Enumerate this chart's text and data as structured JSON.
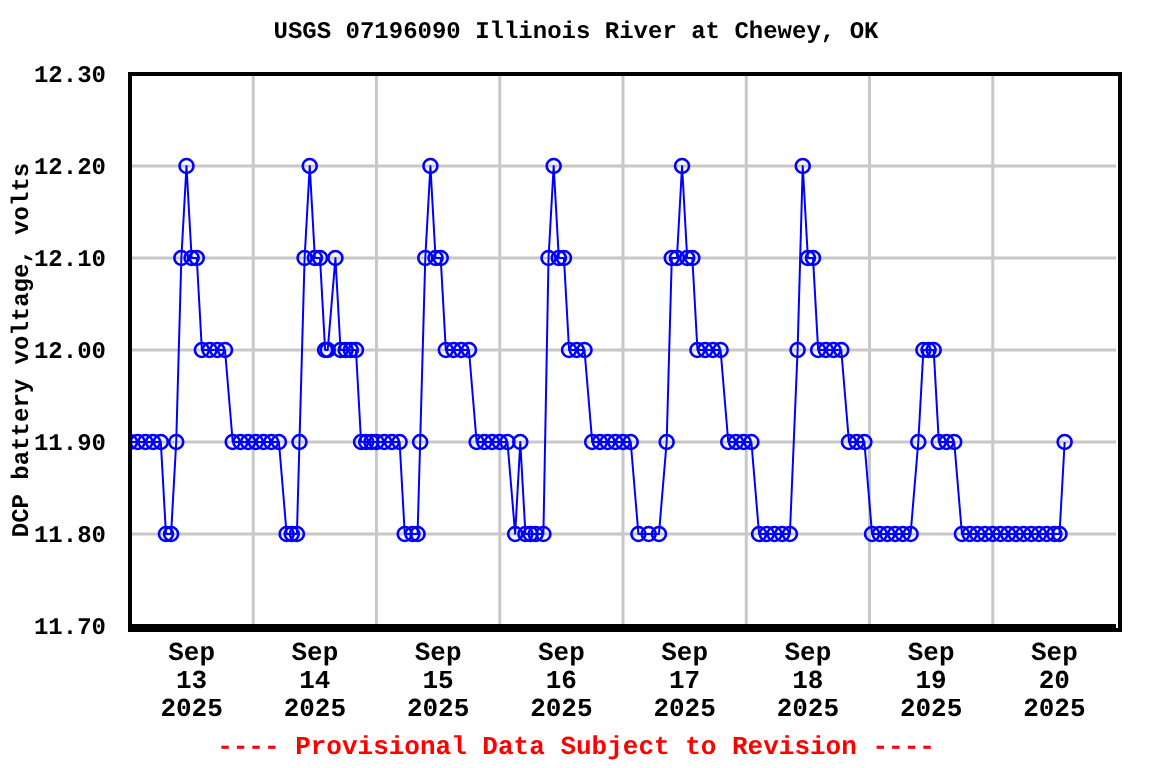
{
  "chart_data": {
    "type": "line",
    "title": "USGS 07196090 Illinois River at Chewey, OK",
    "ylabel": "DCP battery voltage, volts",
    "annotations": [
      "---- Provisional Data Subject to Revision ----"
    ],
    "xlim": [
      "2025-09-13T00:00",
      "2025-09-21T00:00"
    ],
    "xticks": [
      {
        "value": "2025-09-13T12:00",
        "label": "Sep 13 2025"
      },
      {
        "value": "2025-09-14T00:00",
        "label": null
      },
      {
        "value": "2025-09-14T12:00",
        "label": "Sep 14 2025"
      },
      {
        "value": "2025-09-15T00:00",
        "label": null
      },
      {
        "value": "2025-09-15T12:00",
        "label": "Sep 15 2025"
      },
      {
        "value": "2025-09-16T00:00",
        "label": null
      },
      {
        "value": "2025-09-16T12:00",
        "label": "Sep 16 2025"
      },
      {
        "value": "2025-09-17T00:00",
        "label": null
      },
      {
        "value": "2025-09-17T12:00",
        "label": "Sep 17 2025"
      },
      {
        "value": "2025-09-18T00:00",
        "label": null
      },
      {
        "value": "2025-09-18T12:00",
        "label": "Sep 18 2025"
      },
      {
        "value": "2025-09-19T00:00",
        "label": null
      },
      {
        "value": "2025-09-19T12:00",
        "label": "Sep 19 2025"
      },
      {
        "value": "2025-09-20T00:00",
        "label": null
      },
      {
        "value": "2025-09-20T12:00",
        "label": "Sep 20 2025"
      }
    ],
    "ylim": [
      11.7,
      12.3
    ],
    "yticks": [
      {
        "value": 11.7,
        "label": "11.70"
      },
      {
        "value": 11.8,
        "label": "11.80"
      },
      {
        "value": 11.9,
        "label": "11.90"
      },
      {
        "value": 12.0,
        "label": "12.00"
      },
      {
        "value": 12.1,
        "label": "12.10"
      },
      {
        "value": 12.2,
        "label": "12.20"
      },
      {
        "value": 12.3,
        "label": "12.30"
      }
    ],
    "grid": true,
    "marker": "circle",
    "line_style": "solid",
    "series": [
      {
        "color": "#0000ff",
        "x": [
          "2025-09-13T00:00",
          "2025-09-13T01:30",
          "2025-09-13T03:00",
          "2025-09-13T04:30",
          "2025-09-13T06:00",
          "2025-09-13T07:00",
          "2025-09-13T08:00",
          "2025-09-13T09:00",
          "2025-09-13T10:00",
          "2025-09-13T11:00",
          "2025-09-13T12:00",
          "2025-09-13T13:00",
          "2025-09-13T14:00",
          "2025-09-13T15:30",
          "2025-09-13T17:00",
          "2025-09-13T18:30",
          "2025-09-13T20:00",
          "2025-09-13T21:30",
          "2025-09-13T23:00",
          "2025-09-14T00:30",
          "2025-09-14T02:00",
          "2025-09-14T03:30",
          "2025-09-14T05:00",
          "2025-09-14T06:30",
          "2025-09-14T07:30",
          "2025-09-14T08:30",
          "2025-09-14T09:00",
          "2025-09-14T10:00",
          "2025-09-14T11:00",
          "2025-09-14T12:00",
          "2025-09-14T13:00",
          "2025-09-14T14:00",
          "2025-09-14T14:30",
          "2025-09-14T16:00",
          "2025-09-14T17:00",
          "2025-09-14T18:00",
          "2025-09-14T19:00",
          "2025-09-14T20:00",
          "2025-09-14T21:00",
          "2025-09-14T22:00",
          "2025-09-14T23:00",
          "2025-09-15T00:00",
          "2025-09-15T01:30",
          "2025-09-15T03:00",
          "2025-09-15T04:30",
          "2025-09-15T05:30",
          "2025-09-15T07:00",
          "2025-09-15T08:00",
          "2025-09-15T08:30",
          "2025-09-15T09:30",
          "2025-09-15T10:30",
          "2025-09-15T11:30",
          "2025-09-15T12:30",
          "2025-09-15T13:30",
          "2025-09-15T15:00",
          "2025-09-15T16:30",
          "2025-09-15T18:00",
          "2025-09-15T19:30",
          "2025-09-15T21:00",
          "2025-09-15T22:30",
          "2025-09-16T00:00",
          "2025-09-16T01:30",
          "2025-09-16T03:00",
          "2025-09-16T04:00",
          "2025-09-16T05:00",
          "2025-09-16T06:00",
          "2025-09-16T07:00",
          "2025-09-16T08:30",
          "2025-09-16T09:30",
          "2025-09-16T10:30",
          "2025-09-16T11:30",
          "2025-09-16T12:30",
          "2025-09-16T13:30",
          "2025-09-16T15:00",
          "2025-09-16T16:30",
          "2025-09-16T18:00",
          "2025-09-16T19:30",
          "2025-09-16T21:00",
          "2025-09-16T22:30",
          "2025-09-17T00:00",
          "2025-09-17T01:30",
          "2025-09-17T03:00",
          "2025-09-17T05:00",
          "2025-09-17T07:00",
          "2025-09-17T08:30",
          "2025-09-17T09:30",
          "2025-09-17T10:30",
          "2025-09-17T11:30",
          "2025-09-17T12:30",
          "2025-09-17T13:30",
          "2025-09-17T14:30",
          "2025-09-17T16:00",
          "2025-09-17T17:30",
          "2025-09-17T19:00",
          "2025-09-17T20:30",
          "2025-09-17T22:00",
          "2025-09-17T23:30",
          "2025-09-18T01:00",
          "2025-09-18T02:30",
          "2025-09-18T04:00",
          "2025-09-18T05:30",
          "2025-09-18T07:00",
          "2025-09-18T08:30",
          "2025-09-18T10:00",
          "2025-09-18T11:00",
          "2025-09-18T12:00",
          "2025-09-18T13:00",
          "2025-09-18T14:00",
          "2025-09-18T15:30",
          "2025-09-18T17:00",
          "2025-09-18T18:30",
          "2025-09-18T20:00",
          "2025-09-18T21:30",
          "2025-09-18T23:00",
          "2025-09-19T00:30",
          "2025-09-19T02:00",
          "2025-09-19T03:30",
          "2025-09-19T05:00",
          "2025-09-19T06:30",
          "2025-09-19T08:00",
          "2025-09-19T09:30",
          "2025-09-19T10:30",
          "2025-09-19T11:30",
          "2025-09-19T12:30",
          "2025-09-19T13:30",
          "2025-09-19T15:00",
          "2025-09-19T16:30",
          "2025-09-19T18:00",
          "2025-09-19T19:30",
          "2025-09-19T21:00",
          "2025-09-19T22:30",
          "2025-09-20T00:00",
          "2025-09-20T01:30",
          "2025-09-20T03:00",
          "2025-09-20T04:30",
          "2025-09-20T06:00",
          "2025-09-20T07:30",
          "2025-09-20T09:00",
          "2025-09-20T10:30",
          "2025-09-20T12:00",
          "2025-09-20T13:00",
          "2025-09-20T14:00"
        ],
        "values": [
          11.9,
          11.9,
          11.9,
          11.9,
          11.9,
          11.8,
          11.8,
          11.9,
          12.1,
          12.2,
          12.1,
          12.1,
          12.0,
          12.0,
          12.0,
          12.0,
          11.9,
          11.9,
          11.9,
          11.9,
          11.9,
          11.9,
          11.9,
          11.8,
          11.8,
          11.8,
          11.9,
          12.1,
          12.2,
          12.1,
          12.1,
          12.0,
          12.0,
          12.1,
          12.0,
          12.0,
          12.0,
          12.0,
          11.9,
          11.9,
          11.9,
          11.9,
          11.9,
          11.9,
          11.9,
          11.8,
          11.8,
          11.8,
          11.9,
          12.1,
          12.2,
          12.1,
          12.1,
          12.0,
          12.0,
          12.0,
          12.0,
          11.9,
          11.9,
          11.9,
          11.9,
          11.9,
          11.8,
          11.9,
          11.8,
          11.8,
          11.8,
          11.8,
          12.1,
          12.2,
          12.1,
          12.1,
          12.0,
          12.0,
          12.0,
          11.9,
          11.9,
          11.9,
          11.9,
          11.9,
          11.9,
          11.8,
          11.8,
          11.8,
          11.9,
          12.1,
          12.1,
          12.2,
          12.1,
          12.1,
          12.0,
          12.0,
          12.0,
          12.0,
          11.9,
          11.9,
          11.9,
          11.9,
          11.8,
          11.8,
          11.8,
          11.8,
          11.8,
          12.0,
          12.2,
          12.1,
          12.1,
          12.0,
          12.0,
          12.0,
          12.0,
          11.9,
          11.9,
          11.9,
          11.8,
          11.8,
          11.8,
          11.8,
          11.8,
          11.8,
          11.9,
          12.0,
          12.0,
          12.0,
          11.9,
          11.9,
          11.9,
          11.8,
          11.8,
          11.8,
          11.8,
          11.8,
          11.8,
          11.8,
          11.8,
          11.8,
          11.8,
          11.8,
          11.8,
          11.8,
          11.8,
          11.9
        ]
      }
    ]
  }
}
